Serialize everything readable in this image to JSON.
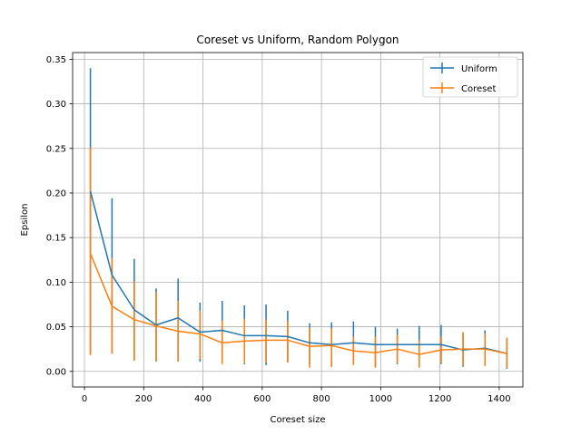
{
  "chart_data": {
    "type": "line",
    "title": "Coreset vs Uniform, Random Polygon",
    "xlabel": "Coreset size",
    "ylabel": "Epsilon",
    "xlim": [
      -40,
      1480
    ],
    "ylim": [
      -0.0175,
      0.3575
    ],
    "x_ticks": [
      0,
      200,
      400,
      600,
      800,
      1000,
      1200,
      1400
    ],
    "y_ticks": [
      0.0,
      0.05,
      0.1,
      0.15,
      0.2,
      0.25,
      0.3,
      0.35
    ],
    "x_tick_labels": [
      "0",
      "200",
      "400",
      "600",
      "800",
      "1000",
      "1200",
      "1400"
    ],
    "y_tick_labels": [
      "0.00",
      "0.05",
      "0.10",
      "0.15",
      "0.20",
      "0.25",
      "0.30",
      "0.35"
    ],
    "grid": true,
    "legend_placement": "top-right",
    "series": [
      {
        "name": "Uniform",
        "color": "#1f77b4",
        "x": [
          20,
          93,
          168,
          242,
          316,
          390,
          465,
          540,
          613,
          686,
          760,
          834,
          908,
          982,
          1056,
          1130,
          1204,
          1278,
          1352,
          1426
        ],
        "y": [
          0.202,
          0.108,
          0.069,
          0.052,
          0.06,
          0.044,
          0.046,
          0.04,
          0.04,
          0.039,
          0.032,
          0.03,
          0.032,
          0.03,
          0.03,
          0.03,
          0.03,
          0.024,
          0.026,
          0.02
        ],
        "err_low": [
          0.02,
          0.02,
          0.013,
          0.011,
          0.011,
          0.011,
          0.013,
          0.008,
          0.007,
          0.01,
          0.008,
          0.005,
          0.009,
          0.005,
          0.008,
          0.007,
          0.008,
          0.005,
          0.008,
          0.003
        ],
        "err_high": [
          0.34,
          0.194,
          0.126,
          0.093,
          0.104,
          0.077,
          0.079,
          0.074,
          0.075,
          0.068,
          0.054,
          0.055,
          0.056,
          0.05,
          0.048,
          0.051,
          0.052,
          0.043,
          0.046,
          0.037
        ]
      },
      {
        "name": "Coreset",
        "color": "#ff7f0e",
        "x": [
          20,
          93,
          168,
          242,
          316,
          390,
          465,
          540,
          613,
          686,
          760,
          834,
          908,
          982,
          1056,
          1130,
          1204,
          1278,
          1352,
          1426
        ],
        "y": [
          0.132,
          0.073,
          0.058,
          0.051,
          0.045,
          0.042,
          0.032,
          0.034,
          0.035,
          0.035,
          0.028,
          0.029,
          0.023,
          0.021,
          0.025,
          0.019,
          0.024,
          0.025,
          0.025,
          0.02
        ],
        "err_low": [
          0.018,
          0.02,
          0.012,
          0.011,
          0.011,
          0.014,
          0.008,
          0.009,
          0.01,
          0.01,
          0.004,
          0.005,
          0.007,
          0.004,
          0.009,
          0.004,
          0.009,
          0.006,
          0.006,
          0.004
        ],
        "err_high": [
          0.251,
          0.127,
          0.101,
          0.089,
          0.079,
          0.068,
          0.057,
          0.059,
          0.058,
          0.057,
          0.049,
          0.048,
          0.039,
          0.039,
          0.041,
          0.035,
          0.039,
          0.044,
          0.042,
          0.038
        ]
      }
    ]
  }
}
